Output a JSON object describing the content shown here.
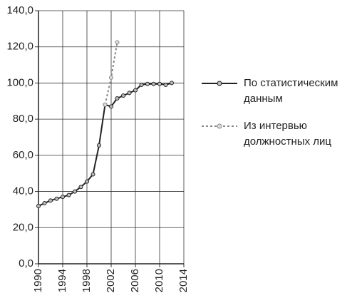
{
  "chart_data": {
    "type": "line",
    "x": [
      1990,
      1991,
      1992,
      1993,
      1994,
      1995,
      1996,
      1997,
      1998,
      1999,
      2000,
      2001,
      2002,
      2003,
      2004,
      2005,
      2006,
      2007,
      2008,
      2009,
      2010,
      2011,
      2012
    ],
    "series": [
      {
        "name": "По статистическим данным",
        "color": "#222222",
        "marker_color": "#bbbbbb",
        "line_style": "solid",
        "values": [
          32,
          33.5,
          35,
          36,
          37,
          38,
          40,
          42.5,
          45.5,
          49.5,
          65.5,
          88,
          87,
          91.5,
          93,
          94.5,
          96,
          99,
          99.5,
          99.5,
          99.5,
          99,
          100
        ]
      },
      {
        "name": "Из интервью должностных лиц",
        "color": "#888888",
        "marker_color": "#dddddd",
        "line_style": "dotted",
        "values": [
          null,
          null,
          null,
          null,
          null,
          null,
          null,
          null,
          null,
          null,
          null,
          88,
          103,
          122.5,
          null,
          null,
          null,
          null,
          null,
          null,
          null,
          null,
          null
        ]
      }
    ],
    "xlim": [
      1990,
      2014
    ],
    "xticks": [
      1990,
      1994,
      1998,
      2002,
      2006,
      2010,
      2014
    ],
    "ylim": [
      0,
      140
    ],
    "yticks": [
      {
        "value": 0,
        "label": "0,0"
      },
      {
        "value": 20,
        "label": "20,0"
      },
      {
        "value": 40,
        "label": "40,0"
      },
      {
        "value": 60,
        "label": "60,0"
      },
      {
        "value": 80,
        "label": "80,0"
      },
      {
        "value": 100,
        "label": "100,0"
      },
      {
        "value": 120,
        "label": "120,0"
      },
      {
        "value": 140,
        "label": "140,0"
      }
    ],
    "grid": true
  }
}
